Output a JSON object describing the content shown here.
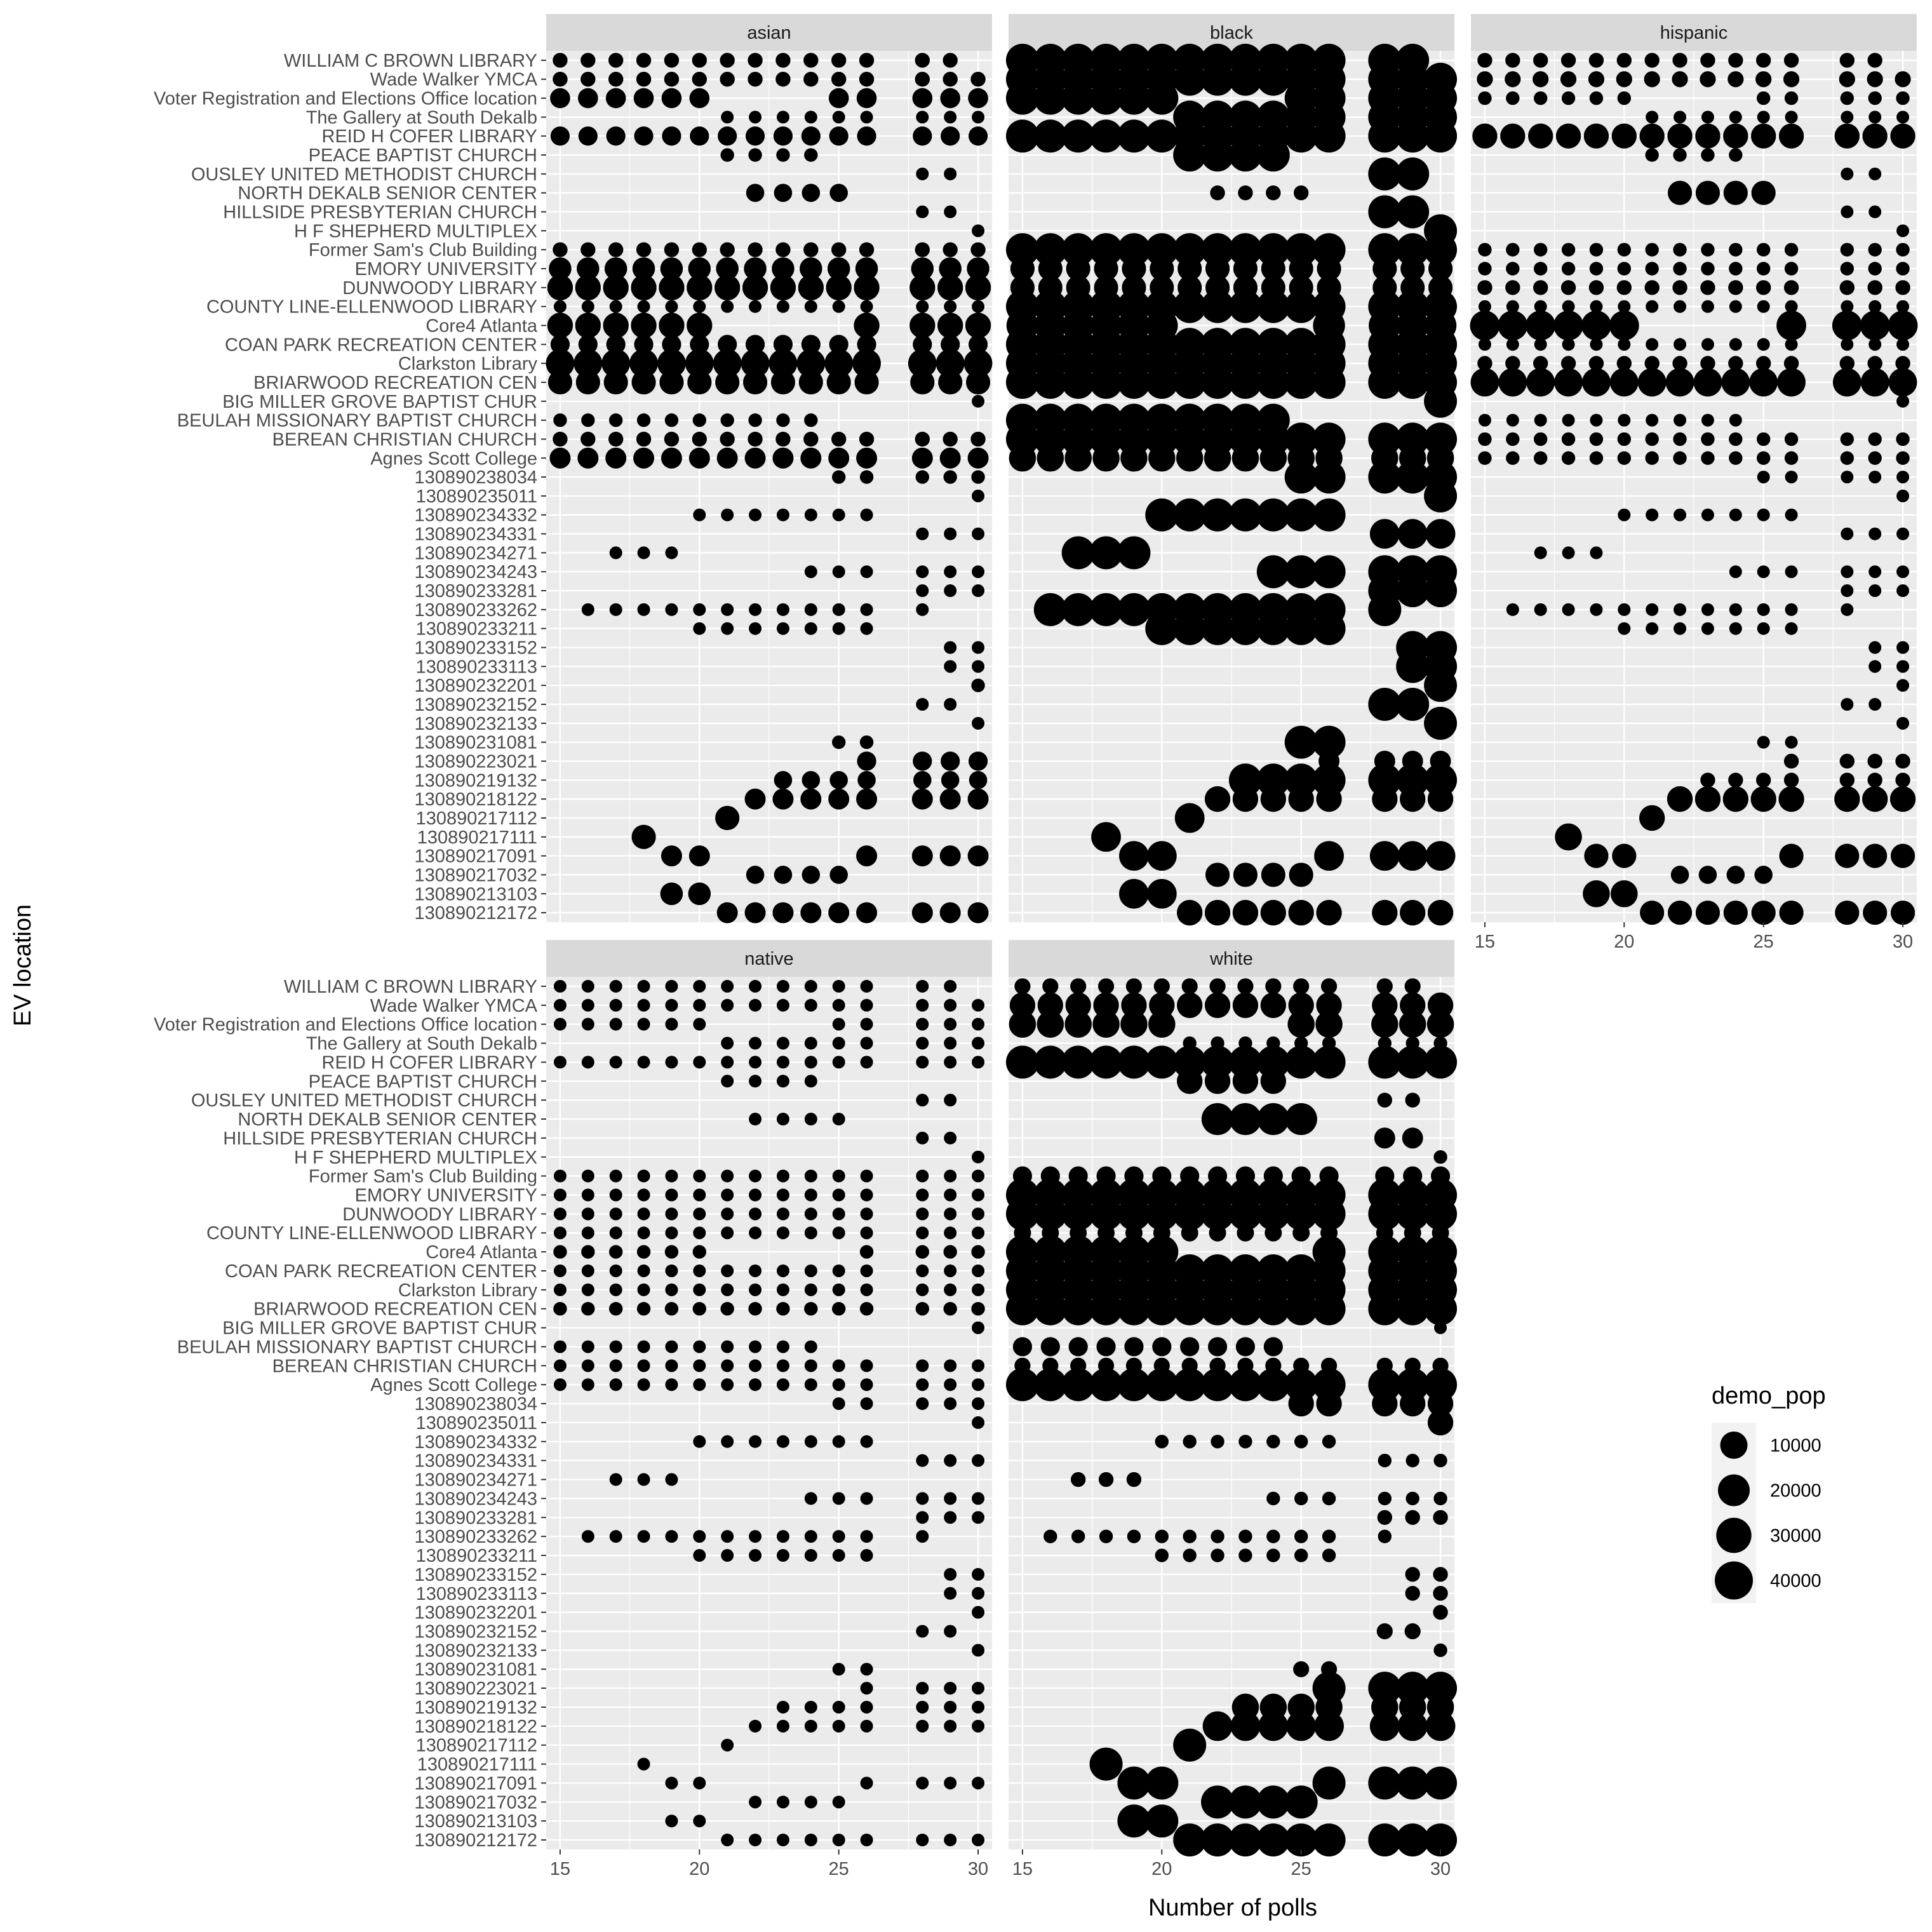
{
  "chart_data": {
    "type": "scatter",
    "xlabel": "Number of polls",
    "ylabel": "EV location",
    "xlim": [
      14.5,
      30.5
    ],
    "x_ticks": [
      15,
      20,
      25,
      30
    ],
    "x_values": [
      15,
      16,
      17,
      18,
      19,
      20,
      21,
      22,
      23,
      24,
      25,
      26,
      28,
      29,
      30
    ],
    "locations": [
      "WILLIAM C BROWN LIBRARY",
      "Wade Walker YMCA",
      "Voter Registration and Elections Office location",
      "The Gallery at South Dekalb",
      "REID H COFER LIBRARY",
      "PEACE BAPTIST CHURCH",
      "OUSLEY UNITED METHODIST CHURCH",
      "NORTH DEKALB SENIOR CENTER",
      "HILLSIDE PRESBYTERIAN CHURCH",
      "H F SHEPHERD MULTIPLEX",
      "Former Sam's Club Building",
      "EMORY UNIVERSITY",
      "DUNWOODY LIBRARY",
      "COUNTY LINE-ELLENWOOD LIBRARY",
      "Core4 Atlanta",
      "COAN PARK RECREATION CENTER",
      "Clarkston Library",
      "BRIARWOOD RECREATION CEN",
      "BIG MILLER GROVE BAPTIST CHUR",
      "BEULAH MISSIONARY BAPTIST CHURCH",
      "BEREAN CHRISTIAN CHURCH",
      "Agnes Scott College",
      "130890238034",
      "130890235011",
      "130890234332",
      "130890234331",
      "130890234271",
      "130890234243",
      "130890233281",
      "130890233262",
      "130890233211",
      "130890233152",
      "130890233113",
      "130890232201",
      "130890232152",
      "130890232133",
      "130890231081",
      "130890223021",
      "130890219132",
      "130890218122",
      "130890217112",
      "130890217111",
      "130890217091",
      "130890217032",
      "130890213103",
      "130890212172"
    ],
    "presence": {
      "WILLIAM C BROWN LIBRARY": "111111111111110",
      "Wade Walker YMCA": "111111111111111",
      "Voter Registration and Elections Office location": "111111000011111",
      "The Gallery at South Dekalb": "000000111111111",
      "REID H COFER LIBRARY": "111111111111111",
      "PEACE BAPTIST CHURCH": "000000111100000",
      "OUSLEY UNITED METHODIST CHURCH": "000000000000110",
      "NORTH DEKALB SENIOR CENTER": "000000011110000",
      "HILLSIDE PRESBYTERIAN CHURCH": "000000000000110",
      "H F SHEPHERD MULTIPLEX": "000000000000001",
      "Former Sam's Club Building": "111111111111111",
      "EMORY UNIVERSITY": "111111111111111",
      "DUNWOODY LIBRARY": "111111111111111",
      "COUNTY LINE-ELLENWOOD LIBRARY": "111111111111111",
      "Core4 Atlanta": "111111000001111",
      "COAN PARK RECREATION CENTER": "111111111111111",
      "Clarkston Library": "111111111111111",
      "BRIARWOOD RECREATION CEN": "111111111111111",
      "BIG MILLER GROVE BAPTIST CHUR": "000000000000001",
      "BEULAH MISSIONARY BAPTIST CHURCH": "111111111100000",
      "BEREAN CHRISTIAN CHURCH": "111111111111111",
      "Agnes Scott College": "111111111111111",
      "130890238034": "000000000011111",
      "130890235011": "000000000000001",
      "130890234332": "000001111111000",
      "130890234331": "000000000000111",
      "130890234271": "001110000000000",
      "130890234243": "000000000111111",
      "130890233281": "000000000000111",
      "130890233262": "011111111111100",
      "130890233211": "000001111111000",
      "130890233152": "000000000000011",
      "130890233113": "000000000000011",
      "130890232201": "000000000000001",
      "130890232152": "000000000000110",
      "130890232133": "000000000000001",
      "130890231081": "000000000011000",
      "130890223021": "000000000001111",
      "130890219132": "000000001111111",
      "130890218122": "000000011111111",
      "130890217112": "000000100000000",
      "130890217111": "000100000000000",
      "130890217091": "000011000001111",
      "130890217032": "000000011110000",
      "130890213103": "000011000000000",
      "130890212172": "000000111111111"
    },
    "panels": [
      {
        "name": "asian",
        "pop": {
          "WILLIAM C BROWN LIBRARY": 3000,
          "Wade Walker YMCA": 3000,
          "Voter Registration and Elections Office location": 5500,
          "The Gallery at South Dekalb": 2200,
          "REID H COFER LIBRARY": 5000,
          "PEACE BAPTIST CHURCH": 2500,
          "OUSLEY UNITED METHODIST CHURCH": 2200,
          "NORTH DEKALB SENIOR CENTER": 4500,
          "HILLSIDE PRESBYTERIAN CHURCH": 2200,
          "H F SHEPHERD MULTIPLEX": 2200,
          "Former Sam's Club Building": 3000,
          "EMORY UNIVERSITY": 7000,
          "DUNWOODY LIBRARY": 9000,
          "COUNTY LINE-ELLENWOOD LIBRARY": 2200,
          "Core4 Atlanta": 9000,
          "COAN PARK RECREATION CENTER": 5000,
          "Clarkston Library": 11000,
          "BRIARWOOD RECREATION CEN": 8000,
          "BIG MILLER GROVE BAPTIST CHUR": 2200,
          "BEULAH MISSIONARY BAPTIST CHURCH": 2500,
          "BEREAN CHRISTIAN CHURCH": 3000,
          "Agnes Scott College": 6000,
          "130890238034": 2500,
          "130890235011": 2200,
          "130890234332": 2200,
          "130890234331": 2200,
          "130890234271": 2200,
          "130890234243": 2200,
          "130890233281": 2200,
          "130890233262": 2200,
          "130890233211": 2200,
          "130890233152": 2200,
          "130890233113": 2200,
          "130890232201": 2500,
          "130890232152": 2200,
          "130890232133": 2200,
          "130890231081": 2500,
          "130890223021": 5000,
          "130890219132": 4500,
          "130890218122": 6000,
          "130890217112": 8000,
          "130890217111": 8000,
          "130890217091": 6000,
          "130890217032": 4500,
          "130890213103": 7000,
          "130890212172": 6000
        }
      },
      {
        "name": "black",
        "pop": {
          "WILLIAM C BROWN LIBRARY": 40000,
          "Wade Walker YMCA": 40000,
          "Voter Registration and Elections Office location": 27000,
          "The Gallery at South Dekalb": 28000,
          "REID H COFER LIBRARY": 15000,
          "PEACE BAPTIST CHURCH": 28000,
          "OUSLEY UNITED METHODIST CHURCH": 28000,
          "NORTH DEKALB SENIOR CENTER": 3000,
          "HILLSIDE PRESBYTERIAN CHURCH": 25000,
          "H F SHEPHERD MULTIPLEX": 30000,
          "Former Sam's Club Building": 18000,
          "EMORY UNIVERSITY": 8000,
          "DUNWOODY LIBRARY": 8000,
          "COUNTY LINE-ELLENWOOD LIBRARY": 28000,
          "Core4 Atlanta": 14000,
          "COAN PARK RECREATION CENTER": 18000,
          "Clarkston Library": 28000,
          "BRIARWOOD RECREATION CEN": 18000,
          "BIG MILLER GROVE BAPTIST CHUR": 34000,
          "BEULAH MISSIONARY BAPTIST CHURCH": 40000,
          "BEREAN CHRISTIAN CHURCH": 32000,
          "Agnes Scott College": 10000,
          "130890238034": 15000,
          "130890235011": 20000,
          "130890234332": 18000,
          "130890234331": 12000,
          "130890234271": 27000,
          "130890234243": 18000,
          "130890233281": 28000,
          "130890233262": 25000,
          "130890233211": 33000,
          "130890233152": 18000,
          "130890233113": 18000,
          "130890232201": 18000,
          "130890232152": 26000,
          "130890232133": 26000,
          "130890231081": 28000,
          "130890223021": 6000,
          "130890219132": 20000,
          "130890218122": 9000,
          "130890217112": 12000,
          "130890217111": 12000,
          "130890217091": 12000,
          "130890217032": 8000,
          "130890213103": 12000,
          "130890212172": 9000
        }
      },
      {
        "name": "hispanic",
        "pop": {
          "WILLIAM C BROWN LIBRARY": 3000,
          "Wade Walker YMCA": 3500,
          "Voter Registration and Elections Office location": 2500,
          "The Gallery at South Dekalb": 2200,
          "REID H COFER LIBRARY": 8500,
          "PEACE BAPTIST CHURCH": 2500,
          "OUSLEY UNITED METHODIST CHURCH": 2200,
          "NORTH DEKALB SENIOR CENTER": 8000,
          "HILLSIDE PRESBYTERIAN CHURCH": 2200,
          "H F SHEPHERD MULTIPLEX": 2200,
          "Former Sam's Club Building": 2500,
          "EMORY UNIVERSITY": 2500,
          "DUNWOODY LIBRARY": 3000,
          "COUNTY LINE-ELLENWOOD LIBRARY": 2200,
          "Core4 Atlanta": 12000,
          "COAN PARK RECREATION CENTER": 2200,
          "Clarkston Library": 3000,
          "BRIARWOOD RECREATION CEN": 11000,
          "BIG MILLER GROVE BAPTIST CHUR": 2200,
          "BEULAH MISSIONARY BAPTIST CHURCH": 2200,
          "BEREAN CHRISTIAN CHURCH": 2500,
          "Agnes Scott College": 2500,
          "130890238034": 2200,
          "130890235011": 2200,
          "130890234332": 2200,
          "130890234331": 2200,
          "130890234271": 2200,
          "130890234243": 2200,
          "130890233281": 2200,
          "130890233262": 2200,
          "130890233211": 2200,
          "130890233152": 2200,
          "130890233113": 2200,
          "130890232201": 2200,
          "130890232152": 2200,
          "130890232133": 2200,
          "130890231081": 2200,
          "130890223021": 3000,
          "130890219132": 3000,
          "130890218122": 9000,
          "130890217112": 9000,
          "130890217111": 10000,
          "130890217091": 8000,
          "130890217032": 4500,
          "130890213103": 10000,
          "130890212172": 8000
        }
      },
      {
        "name": "native",
        "pop": {
          "WILLIAM C BROWN LIBRARY": 2200,
          "Wade Walker YMCA": 2200,
          "Voter Registration and Elections Office location": 2200,
          "The Gallery at South Dekalb": 2200,
          "REID H COFER LIBRARY": 2200,
          "PEACE BAPTIST CHURCH": 2200,
          "OUSLEY UNITED METHODIST CHURCH": 2200,
          "NORTH DEKALB SENIOR CENTER": 2200,
          "HILLSIDE PRESBYTERIAN CHURCH": 2200,
          "H F SHEPHERD MULTIPLEX": 2200,
          "Former Sam's Club Building": 2200,
          "EMORY UNIVERSITY": 2200,
          "DUNWOODY LIBRARY": 2200,
          "COUNTY LINE-ELLENWOOD LIBRARY": 2200,
          "Core4 Atlanta": 2500,
          "COAN PARK RECREATION CENTER": 2200,
          "Clarkston Library": 2200,
          "BRIARWOOD RECREATION CEN": 2500,
          "BIG MILLER GROVE BAPTIST CHUR": 2200,
          "BEULAH MISSIONARY BAPTIST CHURCH": 2200,
          "BEREAN CHRISTIAN CHURCH": 2200,
          "Agnes Scott College": 2200,
          "130890238034": 2200,
          "130890235011": 2200,
          "130890234332": 2200,
          "130890234331": 2200,
          "130890234271": 2200,
          "130890234243": 2200,
          "130890233281": 2200,
          "130890233262": 2200,
          "130890233211": 2200,
          "130890233152": 2200,
          "130890233113": 2200,
          "130890232201": 2200,
          "130890232152": 2200,
          "130890232133": 2200,
          "130890231081": 2200,
          "130890223021": 2200,
          "130890219132": 2200,
          "130890218122": 2200,
          "130890217112": 2200,
          "130890217111": 2200,
          "130890217091": 2200,
          "130890217032": 2200,
          "130890213103": 2200,
          "130890212172": 2200
        }
      },
      {
        "name": "white",
        "pop": {
          "WILLIAM C BROWN LIBRARY": 3500,
          "Wade Walker YMCA": 9000,
          "Voter Registration and Elections Office location": 10000,
          "The Gallery at South Dekalb": 2500,
          "REID H COFER LIBRARY": 16000,
          "PEACE BAPTIST CHURCH": 9000,
          "OUSLEY UNITED METHODIST CHURCH": 3000,
          "NORTH DEKALB SENIOR CENTER": 14000,
          "HILLSIDE PRESBYTERIAN CHURCH": 6000,
          "H F SHEPHERD MULTIPLEX": 2500,
          "Former Sam's Club Building": 5000,
          "EMORY UNIVERSITY": 30000,
          "DUNWOODY LIBRARY": 28000,
          "COUNTY LINE-ELLENWOOD LIBRARY": 4000,
          "Core4 Atlanta": 32000,
          "COAN PARK RECREATION CENTER": 28000,
          "Clarkston Library": 24000,
          "BRIARWOOD RECREATION CEN": 34000,
          "BIG MILLER GROVE BAPTIST CHUR": 2200,
          "BEULAH MISSIONARY BAPTIST CHURCH": 5000,
          "BEREAN CHRISTIAN CHURCH": 3500,
          "Agnes Scott College": 24000,
          "130890238034": 9000,
          "130890235011": 9000,
          "130890234332": 2500,
          "130890234331": 2500,
          "130890234271": 3000,
          "130890234243": 2500,
          "130890233281": 3000,
          "130890233262": 2500,
          "130890233211": 2500,
          "130890233152": 3000,
          "130890233113": 3000,
          "130890232201": 3000,
          "130890232152": 3500,
          "130890232133": 2500,
          "130890231081": 3500,
          "130890223021": 27000,
          "130890219132": 10000,
          "130890218122": 12000,
          "130890217112": 15000,
          "130890217111": 16000,
          "130890217091": 16000,
          "130890217032": 20000,
          "130890213103": 16000,
          "130890212172": 17000
        }
      }
    ],
    "legend": {
      "title": "demo_pop",
      "breaks": [
        10000,
        20000,
        30000,
        40000
      ],
      "labels": [
        "10000",
        "20000",
        "30000",
        "40000"
      ],
      "position": "right"
    },
    "grid": true,
    "colors": {
      "point": "#000000",
      "panel": "#ebebeb",
      "strip": "#d9d9d9",
      "grid": "#ffffff"
    }
  }
}
